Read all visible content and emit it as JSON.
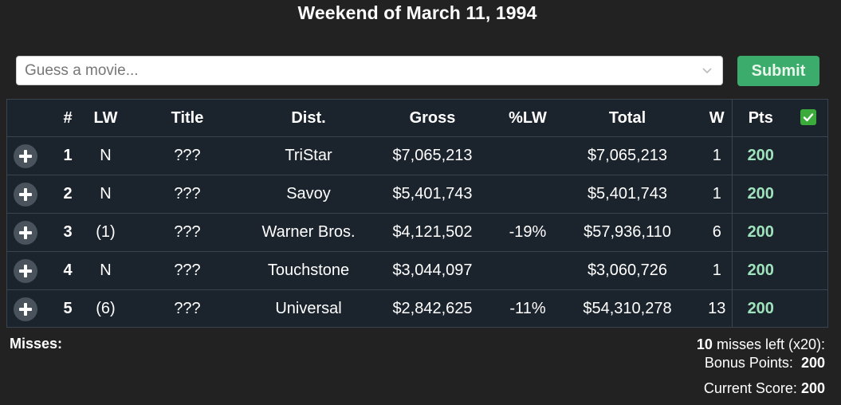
{
  "page": {
    "title": "Weekend of March 11, 1994"
  },
  "search": {
    "placeholder": "Guess a movie...",
    "value": "",
    "icon": "chevron-down-icon"
  },
  "submit": {
    "label": "Submit",
    "color": "#3bac6b"
  },
  "table": {
    "headers": {
      "add": "",
      "rank": "#",
      "lw": "LW",
      "title": "Title",
      "dist": "Dist.",
      "gross": "Gross",
      "pct_lw": "%LW",
      "total": "Total",
      "weeks": "W",
      "pts": "Pts",
      "check": "✅"
    },
    "rows": [
      {
        "rank": "1",
        "lw": "N",
        "title": "???",
        "dist": "TriStar",
        "gross": "$7,065,213",
        "pct_lw": "",
        "total": "$7,065,213",
        "weeks": "1",
        "pts": "200"
      },
      {
        "rank": "2",
        "lw": "N",
        "title": "???",
        "dist": "Savoy",
        "gross": "$5,401,743",
        "pct_lw": "",
        "total": "$5,401,743",
        "weeks": "1",
        "pts": "200"
      },
      {
        "rank": "3",
        "lw": "(1)",
        "title": "???",
        "dist": "Warner Bros.",
        "gross": "$4,121,502",
        "pct_lw": "-19%",
        "total": "$57,936,110",
        "weeks": "6",
        "pts": "200"
      },
      {
        "rank": "4",
        "lw": "N",
        "title": "???",
        "dist": "Touchstone",
        "gross": "$3,044,097",
        "pct_lw": "",
        "total": "$3,060,726",
        "weeks": "1",
        "pts": "200"
      },
      {
        "rank": "5",
        "lw": "(6)",
        "title": "???",
        "dist": "Universal",
        "gross": "$2,842,625",
        "pct_lw": "-11%",
        "total": "$54,310,278",
        "weeks": "13",
        "pts": "200"
      }
    ],
    "colors": {
      "pts": "#9fe3bc",
      "background": "#1b232d",
      "border": "#3a4450"
    }
  },
  "footer": {
    "misses_label": "Misses:",
    "misses_left_count": "10",
    "misses_left_text": "misses left (x20):",
    "bonus_label": "Bonus Points:",
    "bonus_value": "200",
    "score_label": "Current Score:",
    "score_value": "200"
  }
}
